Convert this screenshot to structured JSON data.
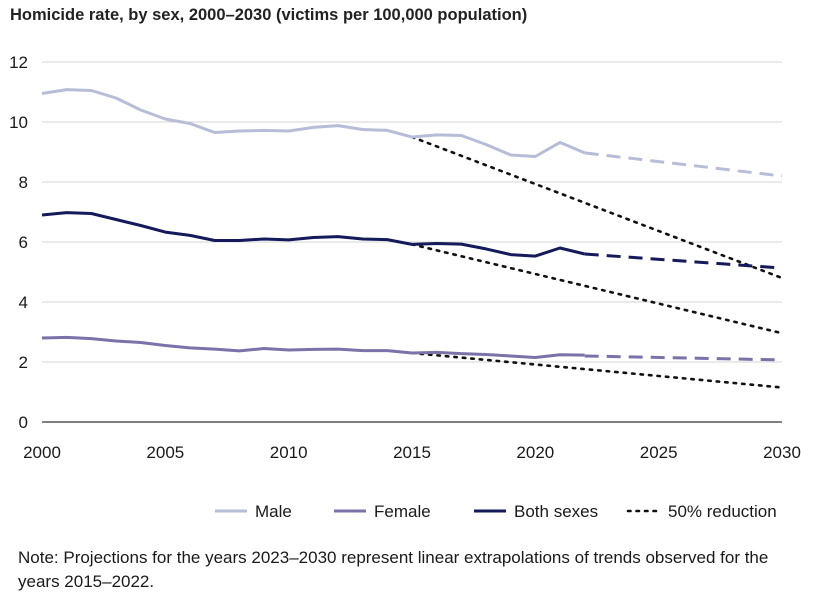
{
  "title": "Homicide rate, by sex, 2000–2030 (victims per 100,000 population)",
  "note": "Note: Projections for the years 2023–2030 represent linear extrapolations of trends observed for the years 2015–2022.",
  "chart_data": {
    "type": "line",
    "title": "Homicide rate, by sex, 2000–2030 (victims per 100,000 population)",
    "xlabel": "",
    "ylabel": "",
    "xlim": [
      2000,
      2030
    ],
    "ylim": [
      0,
      12
    ],
    "x_ticks": [
      2000,
      2005,
      2010,
      2015,
      2020,
      2025,
      2030
    ],
    "y_ticks": [
      0,
      2,
      4,
      6,
      8,
      10,
      12
    ],
    "grid": "horizontal",
    "legend_position": "bottom",
    "series": [
      {
        "name": "Male",
        "color": "#b7bdd6",
        "x": [
          2000,
          2001,
          2002,
          2003,
          2004,
          2005,
          2006,
          2007,
          2008,
          2009,
          2010,
          2011,
          2012,
          2013,
          2014,
          2015,
          2016,
          2017,
          2018,
          2019,
          2020,
          2021,
          2022
        ],
        "values": [
          10.95,
          11.08,
          11.05,
          10.8,
          10.4,
          10.1,
          9.95,
          9.65,
          9.7,
          9.72,
          9.7,
          9.82,
          9.88,
          9.75,
          9.72,
          9.5,
          9.57,
          9.55,
          9.25,
          8.9,
          8.85,
          9.32,
          8.97
        ],
        "projection": {
          "x": [
            2022,
            2030
          ],
          "values": [
            8.97,
            8.2
          ]
        }
      },
      {
        "name": "Female",
        "color": "#7a72a8",
        "x": [
          2000,
          2001,
          2002,
          2003,
          2004,
          2005,
          2006,
          2007,
          2008,
          2009,
          2010,
          2011,
          2012,
          2013,
          2014,
          2015,
          2016,
          2017,
          2018,
          2019,
          2020,
          2021,
          2022
        ],
        "values": [
          2.8,
          2.82,
          2.78,
          2.7,
          2.65,
          2.55,
          2.47,
          2.43,
          2.37,
          2.45,
          2.4,
          2.42,
          2.43,
          2.38,
          2.38,
          2.3,
          2.32,
          2.28,
          2.25,
          2.2,
          2.15,
          2.24,
          2.23
        ],
        "projection": {
          "x": [
            2022,
            2030
          ],
          "values": [
            2.2,
            2.07
          ]
        }
      },
      {
        "name": "Both sexes",
        "color": "#141a5a",
        "x": [
          2000,
          2001,
          2002,
          2003,
          2004,
          2005,
          2006,
          2007,
          2008,
          2009,
          2010,
          2011,
          2012,
          2013,
          2014,
          2015,
          2016,
          2017,
          2018,
          2019,
          2020,
          2021,
          2022
        ],
        "values": [
          6.9,
          6.98,
          6.95,
          6.75,
          6.55,
          6.33,
          6.22,
          6.05,
          6.05,
          6.1,
          6.07,
          6.15,
          6.18,
          6.1,
          6.08,
          5.92,
          5.95,
          5.93,
          5.77,
          5.58,
          5.53,
          5.8,
          5.6
        ],
        "projection": {
          "x": [
            2022,
            2030
          ],
          "values": [
            5.6,
            5.13
          ]
        }
      },
      {
        "name": "50% reduction",
        "color": "#111111",
        "style": "dotted",
        "lines": [
          {
            "x": [
              2015,
              2030
            ],
            "values": [
              9.5,
              4.8
            ]
          },
          {
            "x": [
              2015,
              2030
            ],
            "values": [
              5.92,
              2.96
            ]
          },
          {
            "x": [
              2015,
              2030
            ],
            "values": [
              2.3,
              1.15
            ]
          }
        ]
      }
    ]
  }
}
